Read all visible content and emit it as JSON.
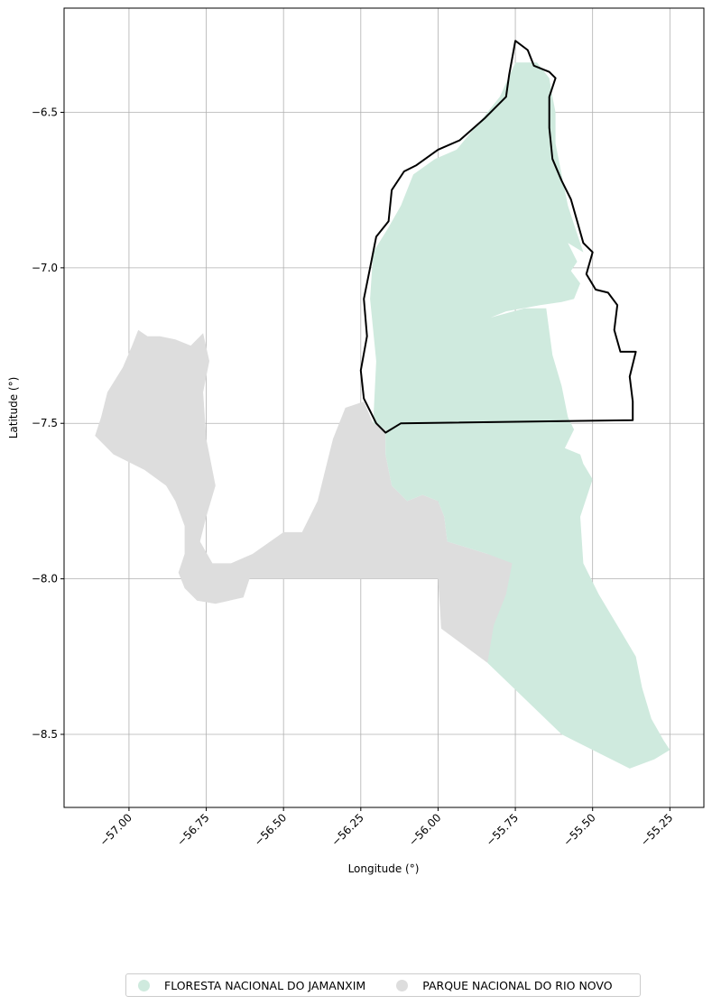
{
  "chart_data": {
    "type": "map",
    "xlabel": "Longitude (°)",
    "ylabel": "Latitude (°)",
    "xlim": [
      -57.21,
      -55.14
    ],
    "ylim": [
      -8.735,
      -6.165
    ],
    "xticks": [
      -57.0,
      -56.75,
      -56.5,
      -56.25,
      -56.0,
      -55.75,
      -55.5,
      -55.25
    ],
    "xtick_labels": [
      "−57.00",
      "−56.75",
      "−56.50",
      "−56.25",
      "−56.00",
      "−55.75",
      "−55.50",
      "−55.25"
    ],
    "yticks": [
      -6.5,
      -7.0,
      -7.5,
      -8.0,
      -8.5
    ],
    "ytick_labels": [
      "−6.5",
      "−7.0",
      "−7.5",
      "−8.0",
      "−8.5"
    ],
    "grid": true,
    "legend_position": "bottom-center",
    "layers": [
      {
        "name": "FLORESTA NACIONAL DO JAMANXIM",
        "color": "#cfeade",
        "polygon_lonlat": [
          [
            -55.75,
            -6.34
          ],
          [
            -55.68,
            -6.34
          ],
          [
            -55.64,
            -6.39
          ],
          [
            -55.63,
            -6.45
          ],
          [
            -55.62,
            -6.5
          ],
          [
            -55.62,
            -6.6
          ],
          [
            -55.6,
            -6.7
          ],
          [
            -55.58,
            -6.8
          ],
          [
            -55.56,
            -6.86
          ],
          [
            -55.53,
            -6.95
          ],
          [
            -55.58,
            -6.92
          ],
          [
            -55.55,
            -6.98
          ],
          [
            -55.57,
            -7.01
          ],
          [
            -55.54,
            -7.05
          ],
          [
            -55.56,
            -7.1
          ],
          [
            -55.6,
            -7.11
          ],
          [
            -55.67,
            -7.12
          ],
          [
            -55.78,
            -7.14
          ],
          [
            -55.83,
            -7.16
          ],
          [
            -55.72,
            -7.13
          ],
          [
            -55.65,
            -7.13
          ],
          [
            -55.63,
            -7.28
          ],
          [
            -55.6,
            -7.38
          ],
          [
            -55.58,
            -7.48
          ],
          [
            -55.56,
            -7.52
          ],
          [
            -55.59,
            -7.58
          ],
          [
            -55.54,
            -7.6
          ],
          [
            -55.53,
            -7.63
          ],
          [
            -55.5,
            -7.68
          ],
          [
            -55.54,
            -7.8
          ],
          [
            -55.53,
            -7.95
          ],
          [
            -55.48,
            -8.05
          ],
          [
            -55.42,
            -8.15
          ],
          [
            -55.36,
            -8.25
          ],
          [
            -55.34,
            -8.35
          ],
          [
            -55.31,
            -8.45
          ],
          [
            -55.27,
            -8.52
          ],
          [
            -55.25,
            -8.55
          ],
          [
            -55.3,
            -8.58
          ],
          [
            -55.38,
            -8.61
          ],
          [
            -55.6,
            -8.5
          ],
          [
            -55.84,
            -8.27
          ],
          [
            -55.82,
            -8.15
          ],
          [
            -55.78,
            -8.05
          ],
          [
            -55.76,
            -7.95
          ],
          [
            -55.84,
            -7.92
          ],
          [
            -55.97,
            -7.88
          ],
          [
            -55.98,
            -7.8
          ],
          [
            -56.0,
            -7.75
          ],
          [
            -56.05,
            -7.73
          ],
          [
            -56.1,
            -7.75
          ],
          [
            -56.15,
            -7.7
          ],
          [
            -56.17,
            -7.6
          ],
          [
            -56.17,
            -7.52
          ],
          [
            -56.21,
            -7.5
          ],
          [
            -56.2,
            -7.3
          ],
          [
            -56.22,
            -7.1
          ],
          [
            -56.21,
            -6.95
          ],
          [
            -56.16,
            -6.87
          ],
          [
            -56.12,
            -6.8
          ],
          [
            -56.08,
            -6.7
          ],
          [
            -56.01,
            -6.65
          ],
          [
            -55.94,
            -6.62
          ],
          [
            -55.84,
            -6.5
          ],
          [
            -55.8,
            -6.45
          ],
          [
            -55.75,
            -6.34
          ]
        ]
      },
      {
        "name": "PARQUE NACIONAL DO RIO NOVO",
        "color": "#dddddd",
        "polygon_lonlat": [
          [
            -56.97,
            -7.2
          ],
          [
            -56.94,
            -7.22
          ],
          [
            -56.9,
            -7.22
          ],
          [
            -56.85,
            -7.23
          ],
          [
            -56.8,
            -7.25
          ],
          [
            -56.76,
            -7.21
          ],
          [
            -56.74,
            -7.3
          ],
          [
            -56.76,
            -7.4
          ],
          [
            -56.75,
            -7.55
          ],
          [
            -56.72,
            -7.7
          ],
          [
            -56.75,
            -7.8
          ],
          [
            -56.77,
            -7.88
          ],
          [
            -56.73,
            -7.95
          ],
          [
            -56.67,
            -7.95
          ],
          [
            -56.6,
            -7.92
          ],
          [
            -56.5,
            -7.85
          ],
          [
            -56.44,
            -7.85
          ],
          [
            -56.39,
            -7.75
          ],
          [
            -56.36,
            -7.63
          ],
          [
            -56.34,
            -7.55
          ],
          [
            -56.3,
            -7.45
          ],
          [
            -56.24,
            -7.43
          ],
          [
            -56.21,
            -7.5
          ],
          [
            -56.17,
            -7.52
          ],
          [
            -56.17,
            -7.6
          ],
          [
            -56.15,
            -7.7
          ],
          [
            -56.1,
            -7.75
          ],
          [
            -56.05,
            -7.73
          ],
          [
            -56.0,
            -7.75
          ],
          [
            -55.98,
            -7.8
          ],
          [
            -55.97,
            -7.88
          ],
          [
            -55.84,
            -7.92
          ],
          [
            -55.73,
            -7.93
          ],
          [
            -55.76,
            -7.99
          ],
          [
            -55.79,
            -8.12
          ],
          [
            -55.82,
            -8.2
          ],
          [
            -55.84,
            -8.27
          ],
          [
            -55.99,
            -8.16
          ],
          [
            -56.0,
            -8.0
          ],
          [
            -56.61,
            -8.0
          ],
          [
            -56.63,
            -8.06
          ],
          [
            -56.72,
            -8.08
          ],
          [
            -56.78,
            -8.07
          ],
          [
            -56.82,
            -8.03
          ],
          [
            -56.84,
            -7.98
          ],
          [
            -56.82,
            -7.92
          ],
          [
            -56.82,
            -7.83
          ],
          [
            -56.85,
            -7.75
          ],
          [
            -56.88,
            -7.7
          ],
          [
            -56.95,
            -7.65
          ],
          [
            -57.05,
            -7.6
          ],
          [
            -57.11,
            -7.54
          ],
          [
            -57.09,
            -7.48
          ],
          [
            -57.07,
            -7.4
          ],
          [
            -57.02,
            -7.32
          ],
          [
            -56.99,
            -7.25
          ],
          [
            -56.97,
            -7.2
          ]
        ]
      },
      {
        "name": "outline",
        "stroke": "#000000",
        "polygon_lonlat": [
          [
            -55.75,
            -6.27
          ],
          [
            -55.71,
            -6.3
          ],
          [
            -55.69,
            -6.35
          ],
          [
            -55.64,
            -6.37
          ],
          [
            -55.62,
            -6.39
          ],
          [
            -55.64,
            -6.45
          ],
          [
            -55.64,
            -6.55
          ],
          [
            -55.63,
            -6.65
          ],
          [
            -55.6,
            -6.72
          ],
          [
            -55.57,
            -6.78
          ],
          [
            -55.55,
            -6.85
          ],
          [
            -55.53,
            -6.92
          ],
          [
            -55.5,
            -6.95
          ],
          [
            -55.52,
            -7.02
          ],
          [
            -55.49,
            -7.07
          ],
          [
            -55.45,
            -7.08
          ],
          [
            -55.42,
            -7.12
          ],
          [
            -55.43,
            -7.2
          ],
          [
            -55.41,
            -7.27
          ],
          [
            -55.36,
            -7.27
          ],
          [
            -55.38,
            -7.35
          ],
          [
            -55.37,
            -7.43
          ],
          [
            -55.37,
            -7.49
          ],
          [
            -56.12,
            -7.5
          ],
          [
            -56.17,
            -7.53
          ],
          [
            -56.2,
            -7.5
          ],
          [
            -56.24,
            -7.42
          ],
          [
            -56.25,
            -7.33
          ],
          [
            -56.23,
            -7.22
          ],
          [
            -56.24,
            -7.1
          ],
          [
            -56.22,
            -7.0
          ],
          [
            -56.2,
            -6.9
          ],
          [
            -56.16,
            -6.85
          ],
          [
            -56.15,
            -6.75
          ],
          [
            -56.11,
            -6.69
          ],
          [
            -56.07,
            -6.67
          ],
          [
            -56.0,
            -6.62
          ],
          [
            -55.93,
            -6.59
          ],
          [
            -55.85,
            -6.52
          ],
          [
            -55.78,
            -6.45
          ],
          [
            -55.77,
            -6.38
          ],
          [
            -55.75,
            -6.27
          ]
        ]
      }
    ]
  },
  "legend": {
    "items": [
      {
        "label": "FLORESTA NACIONAL DO JAMANXIM",
        "color": "#cfeade"
      },
      {
        "label": "PARQUE NACIONAL DO RIO NOVO",
        "color": "#dddddd"
      }
    ]
  }
}
